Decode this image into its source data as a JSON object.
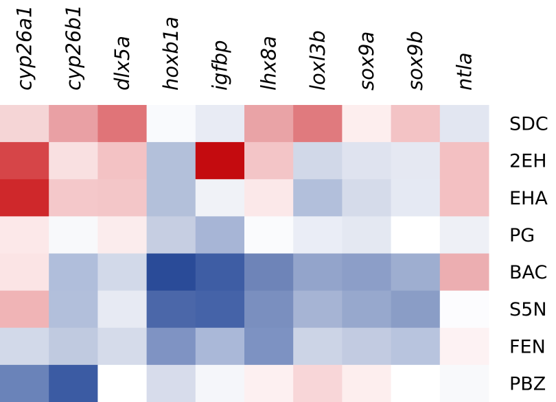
{
  "chart_data": {
    "type": "heatmap",
    "columns": [
      "cyp26a1",
      "cyp26b1",
      "dlx5a",
      "hoxb1a",
      "igfbp",
      "lhx8a",
      "loxl3b",
      "sox9a",
      "sox9b",
      "ntla"
    ],
    "rows": [
      "SDC",
      "2EH",
      "EHA",
      "PG",
      "BAC",
      "S5N",
      "FEN",
      "PBZ"
    ],
    "colors": [
      [
        "#f5d5d6",
        "#e9a0a4",
        "#e07478",
        "#f9fafd",
        "#e8ebf4",
        "#e9a3a6",
        "#e07a7e",
        "#fdeeee",
        "#f3c3c5",
        "#e2e6f1"
      ],
      [
        "#d64548",
        "#f9e0e1",
        "#f3c2c4",
        "#b3c0da",
        "#c40b0f",
        "#f3c5c7",
        "#d1d8e8",
        "#dfe3ef",
        "#e5e8f2",
        "#f3c0c2"
      ],
      [
        "#cf282b",
        "#f4c8ca",
        "#f3c6c8",
        "#b3c0da",
        "#f0f2f7",
        "#fbe8e9",
        "#b2bfdb",
        "#d5dbea",
        "#e5e9f3",
        "#f3c0c2"
      ],
      [
        "#fce8e9",
        "#f8f9fb",
        "#fbeced",
        "#c6cee2",
        "#a7b5d6",
        "#fafbfd",
        "#eaedf6",
        "#e4e8f2",
        "#ffffff",
        "#eef0f6"
      ],
      [
        "#fbe4e5",
        "#b0bedb",
        "#d2d9e9",
        "#2a4b98",
        "#3e5da4",
        "#6e84b8",
        "#93a4cb",
        "#8c9ec8",
        "#9eaed0",
        "#ecaeb1"
      ],
      [
        "#f0b4b6",
        "#b2bfdb",
        "#e7eaf3",
        "#4b67a9",
        "#4563a8",
        "#7a8fbf",
        "#a6b4d4",
        "#97a8cd",
        "#8a9dc6",
        "#fcfcfe"
      ],
      [
        "#d2d9e9",
        "#c0cae0",
        "#d5dbea",
        "#7f93c3",
        "#aab8d8",
        "#7d92c2",
        "#ccd4e6",
        "#c2cbe1",
        "#b8c4de",
        "#fdf2f3"
      ],
      [
        "#6a83b9",
        "#3b5ba3",
        "#ffffff",
        "#d7dceb",
        "#f5f6fa",
        "#fdf0f1",
        "#f8d6d8",
        "#fdeeee",
        "#ffffff",
        "#f8f9fb"
      ]
    ]
  }
}
